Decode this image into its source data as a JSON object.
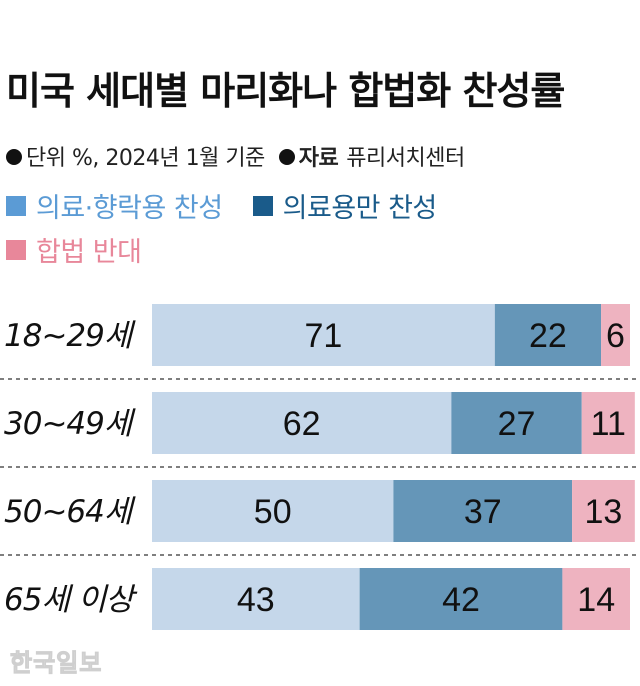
{
  "title": "미국 세대별 마리화나 합법화 찬성률",
  "meta": {
    "unit": "단위  %, 2024년 1월 기준",
    "source_label": "자료",
    "source": "퓨리서치센터"
  },
  "colors": {
    "medical_recreational": "#c5d7ea",
    "medical_only": "#6596b8",
    "oppose": "#eeb3c0",
    "legend_medical_recreational": "#5b9bd5",
    "legend_medical_only": "#1a5b8a",
    "legend_oppose": "#e8879a"
  },
  "watermark": "한국일보",
  "chart_data": {
    "type": "bar",
    "orientation": "horizontal",
    "stacked": true,
    "categories": [
      "18~29세",
      "30~49세",
      "50~64세",
      "65세 이상"
    ],
    "series": [
      {
        "name": "의료·향락용 찬성",
        "values": [
          71,
          62,
          50,
          43
        ]
      },
      {
        "name": "의료용만 찬성",
        "values": [
          22,
          27,
          37,
          42
        ]
      },
      {
        "name": "합법 반대",
        "values": [
          6,
          11,
          13,
          14
        ]
      }
    ],
    "xlim": [
      0,
      99
    ],
    "grid": false,
    "legend_position": "top-left"
  }
}
